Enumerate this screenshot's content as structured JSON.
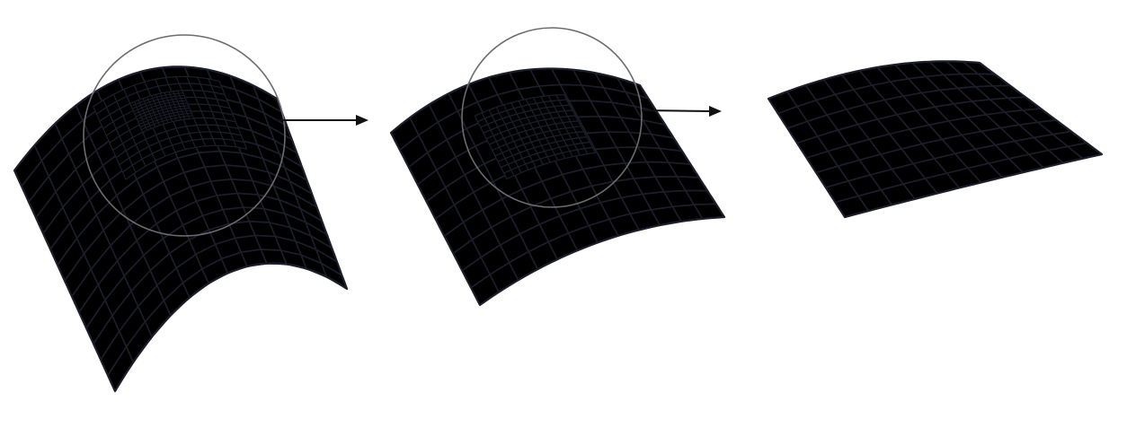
{
  "figure": {
    "stages": [
      {
        "id": "stage-1",
        "coarse_grid": [
          12,
          14
        ],
        "refinement_levels": 2,
        "has_lens": true
      },
      {
        "id": "stage-2",
        "coarse_grid": [
          12,
          10
        ],
        "refinement_levels": 1,
        "has_lens": true
      },
      {
        "id": "stage-3",
        "coarse_grid": [
          12,
          8
        ],
        "refinement_levels": 0,
        "has_lens": false
      }
    ],
    "arrows": 2,
    "colors": {
      "surface_light": "#eceff8",
      "surface_dark": "#7286c8",
      "grid_line": "#1c1f2b",
      "lens": "#6b6b70",
      "arrow": "#111111"
    }
  }
}
